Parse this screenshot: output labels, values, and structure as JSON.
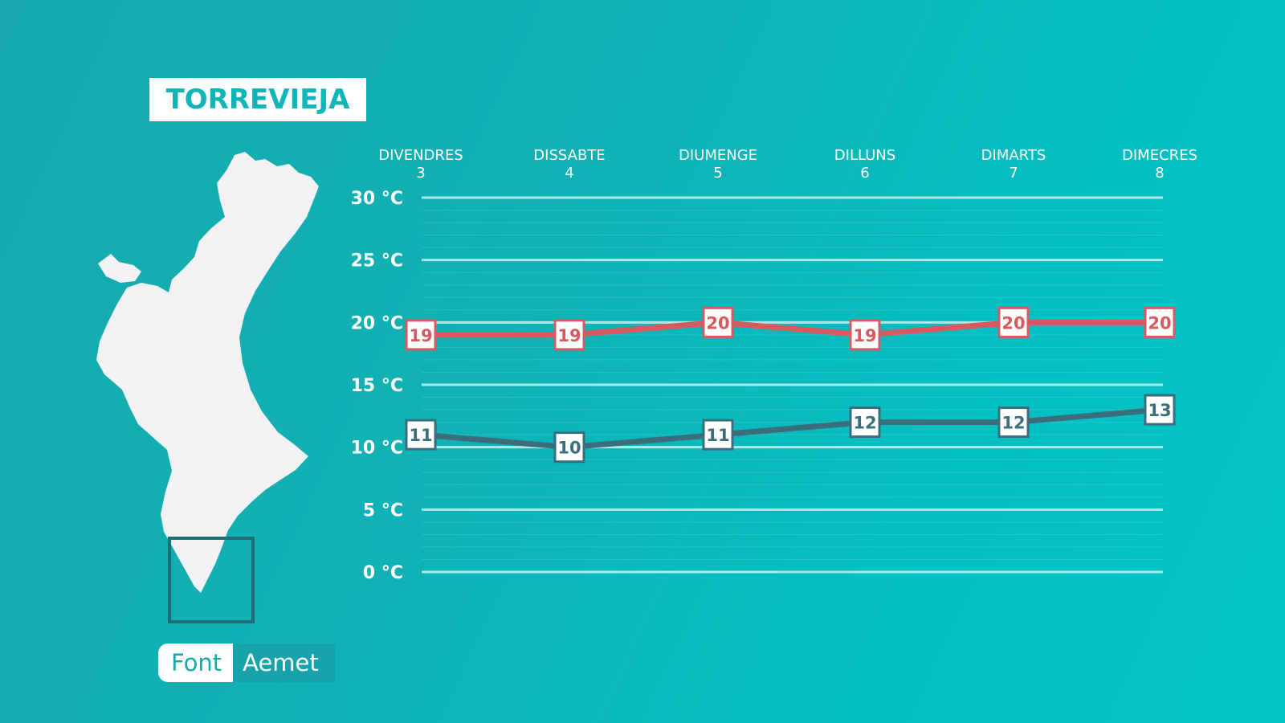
{
  "location": "TORREVIEJA",
  "source": {
    "key": "Font",
    "value": "Aemet"
  },
  "colors": {
    "max_line": "#d85a5f",
    "min_line": "#3b6d7c",
    "grid": "#bfeeee",
    "map_fill": "#f2f2f4",
    "map_highlight": "#1d6f74"
  },
  "chart_data": {
    "type": "line",
    "categories": [
      "DIVENDRES",
      "DISSABTE",
      "DIUMENGE",
      "DILLUNS",
      "DIMARTS",
      "DIMECRES"
    ],
    "dates": [
      "3",
      "4",
      "5",
      "6",
      "7",
      "8"
    ],
    "yticks": [
      "0 °C",
      "5 °C",
      "10 °C",
      "15 °C",
      "20 °C",
      "25 °C",
      "30 °C"
    ],
    "ylim": [
      0,
      30
    ],
    "series": [
      {
        "key": "max",
        "values": [
          19,
          19,
          20,
          19,
          20,
          20
        ]
      },
      {
        "key": "min",
        "values": [
          11,
          10,
          11,
          12,
          12,
          13
        ]
      }
    ]
  }
}
